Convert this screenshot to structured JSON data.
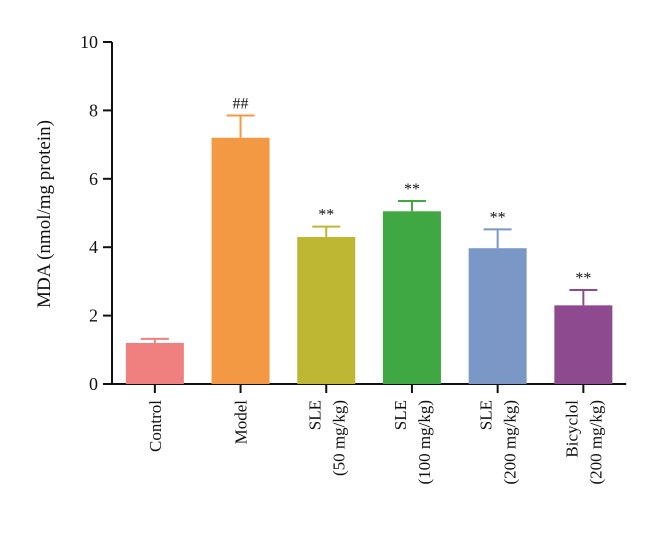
{
  "chart_data": {
    "type": "bar",
    "ylabel": "MDA (nmol/mg protein)",
    "xlabel": "",
    "ylim": [
      0,
      10
    ],
    "yticks": [
      "0",
      "2",
      "4",
      "6",
      "8",
      "10"
    ],
    "categories": [
      {
        "lines": [
          "Control"
        ]
      },
      {
        "lines": [
          "Model"
        ]
      },
      {
        "lines": [
          "SLE",
          "(50 mg/kg)"
        ]
      },
      {
        "lines": [
          "SLE",
          "(100 mg/kg)"
        ]
      },
      {
        "lines": [
          "SLE",
          "(200 mg/kg)"
        ]
      },
      {
        "lines": [
          "Bicyclol",
          "(200 mg/kg)"
        ]
      }
    ],
    "values": [
      1.2,
      7.2,
      4.3,
      5.05,
      3.97,
      2.3
    ],
    "errors": [
      0.12,
      0.65,
      0.3,
      0.3,
      0.55,
      0.45
    ],
    "colors": [
      "#f07f7f",
      "#f39843",
      "#bdb734",
      "#3fa842",
      "#7b97c5",
      "#8d4a8f"
    ],
    "annotations": [
      "",
      "##",
      "**",
      "**",
      "**",
      "**"
    ],
    "grid": false,
    "legend": "none"
  }
}
